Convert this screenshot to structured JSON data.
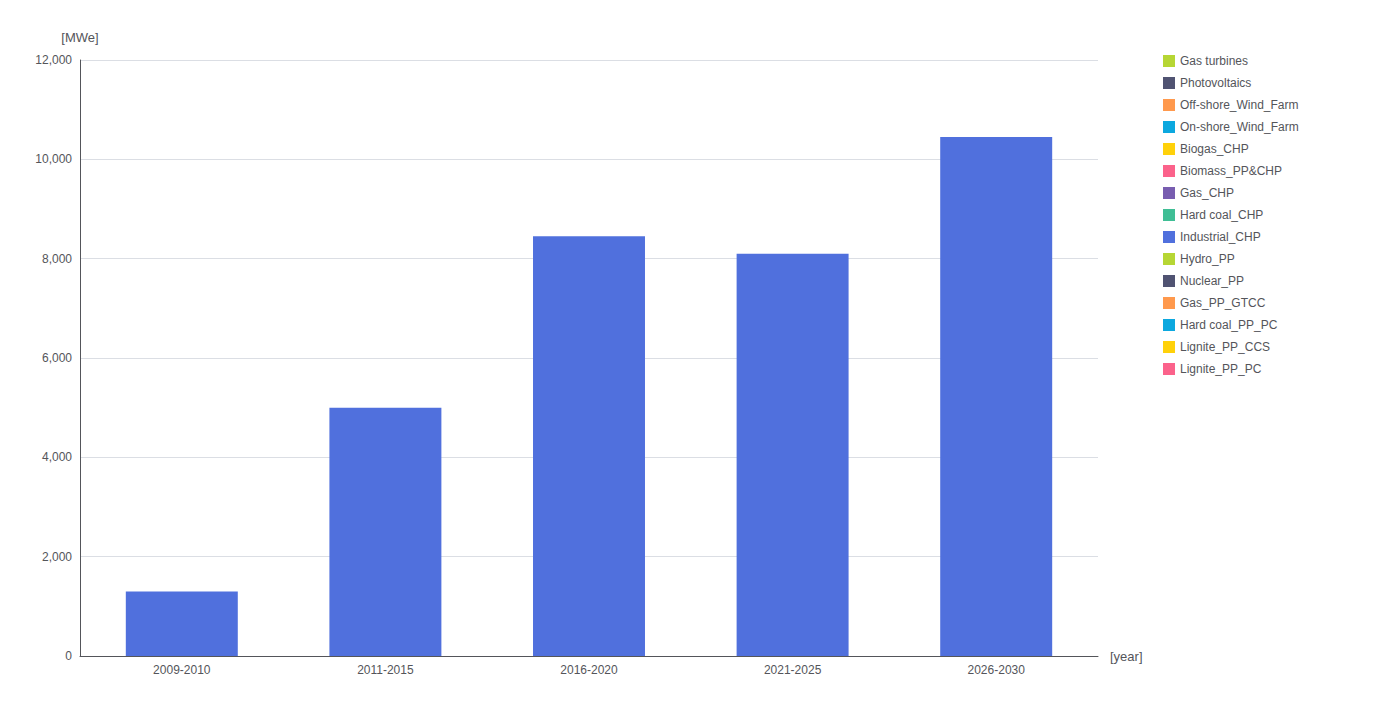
{
  "chart_data": {
    "type": "bar",
    "categories": [
      "2009-2010",
      "2011-2015",
      "2016-2020",
      "2021-2025",
      "2026-2030"
    ],
    "values": [
      1300,
      5000,
      8450,
      8100,
      10450
    ],
    "xlabel": "[year]",
    "ylabel": "[MWe]",
    "ylim": [
      0,
      12000
    ],
    "yticks": [
      0,
      2000,
      4000,
      6000,
      8000,
      10000,
      12000
    ],
    "grid": true,
    "legend": "right",
    "legend_entries": [
      "Gas turbines",
      "Photovoltaics",
      "Off-shore_Wind_Farm",
      "On-shore_Wind_Farm",
      "Biogas_CHP",
      "Biomass_PP&CHP",
      "Gas_CHP",
      "Hard coal_CHP",
      "Industrial_CHP",
      "Hydro_PP",
      "Nuclear_PP",
      "Gas_PP_GTCC",
      "Hard coal_PP_PC",
      "Lignite_PP_CCS",
      "Lignite_PP_PC"
    ]
  }
}
